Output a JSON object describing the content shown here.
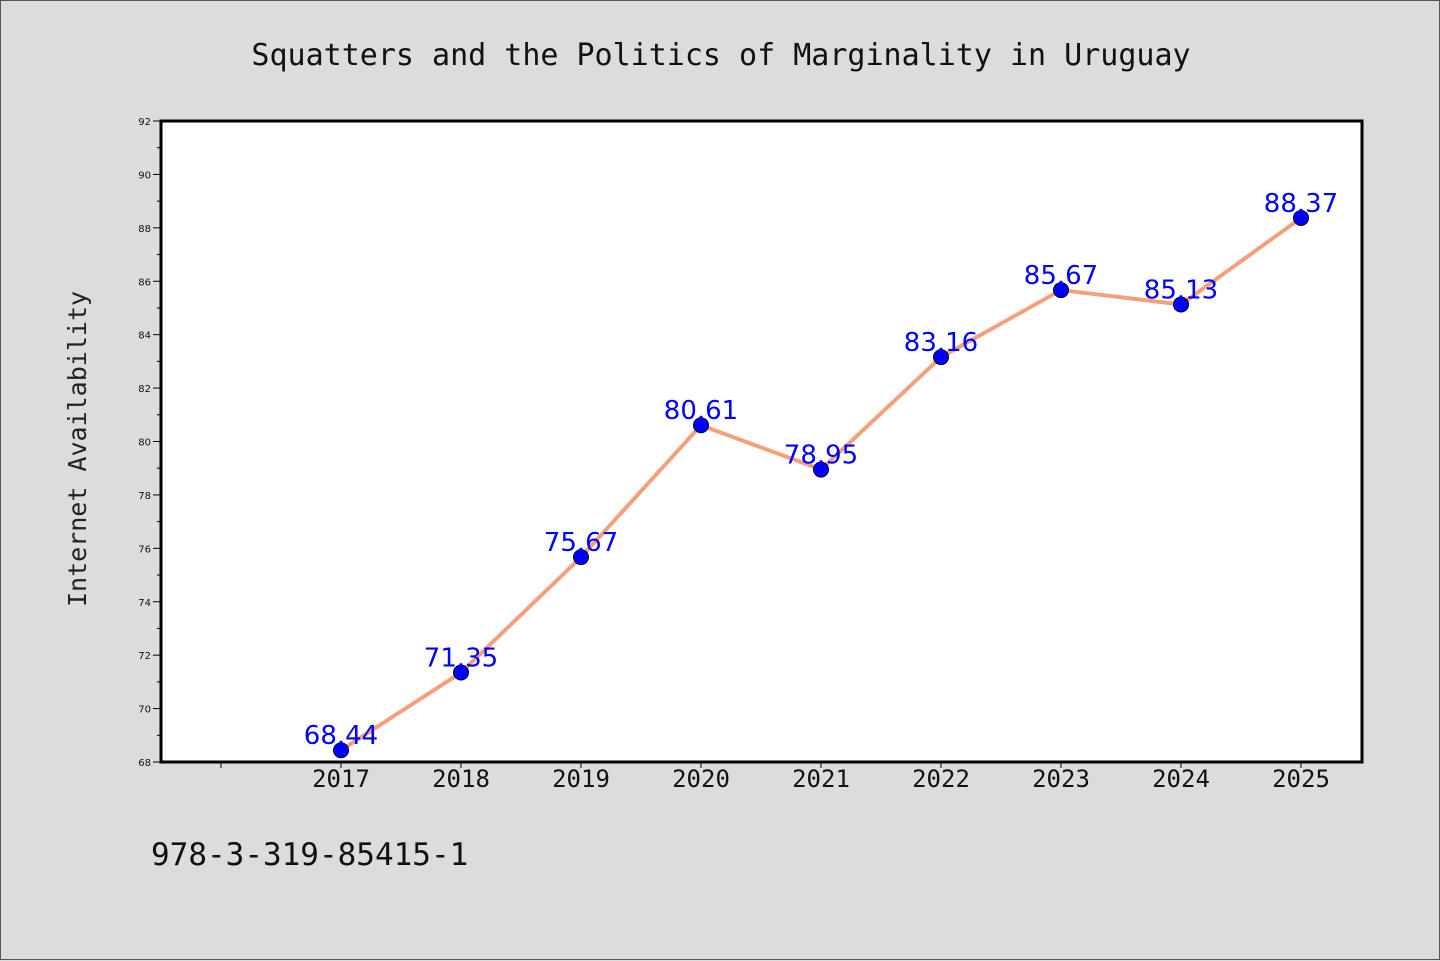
{
  "chart_data": {
    "type": "line",
    "title": "Squatters and the Politics of Marginality in Uruguay",
    "xlabel": "",
    "ylabel": "Internet Availability",
    "categories": [
      "2017",
      "2018",
      "2019",
      "2020",
      "2021",
      "2022",
      "2023",
      "2024",
      "2025"
    ],
    "series": [
      {
        "values": [
          68.44,
          71.35,
          75.67,
          80.61,
          78.95,
          83.16,
          85.67,
          85.13,
          88.37
        ]
      }
    ],
    "ylim": [
      68,
      92
    ],
    "yticks": [
      68,
      70,
      72,
      74,
      76,
      78,
      80,
      82,
      84,
      86,
      88,
      90,
      92
    ],
    "data_labels": [
      "68.44",
      "71.35",
      "75.67",
      "80.61",
      "78.95",
      "83.16",
      "85.67",
      "85.13",
      "88.37"
    ],
    "grid": false,
    "line_color": "#f4a07a",
    "marker_color": "#0000ff",
    "label_color": "#0000ff"
  },
  "footer": {
    "isbn": "978-3-319-85415-1"
  }
}
